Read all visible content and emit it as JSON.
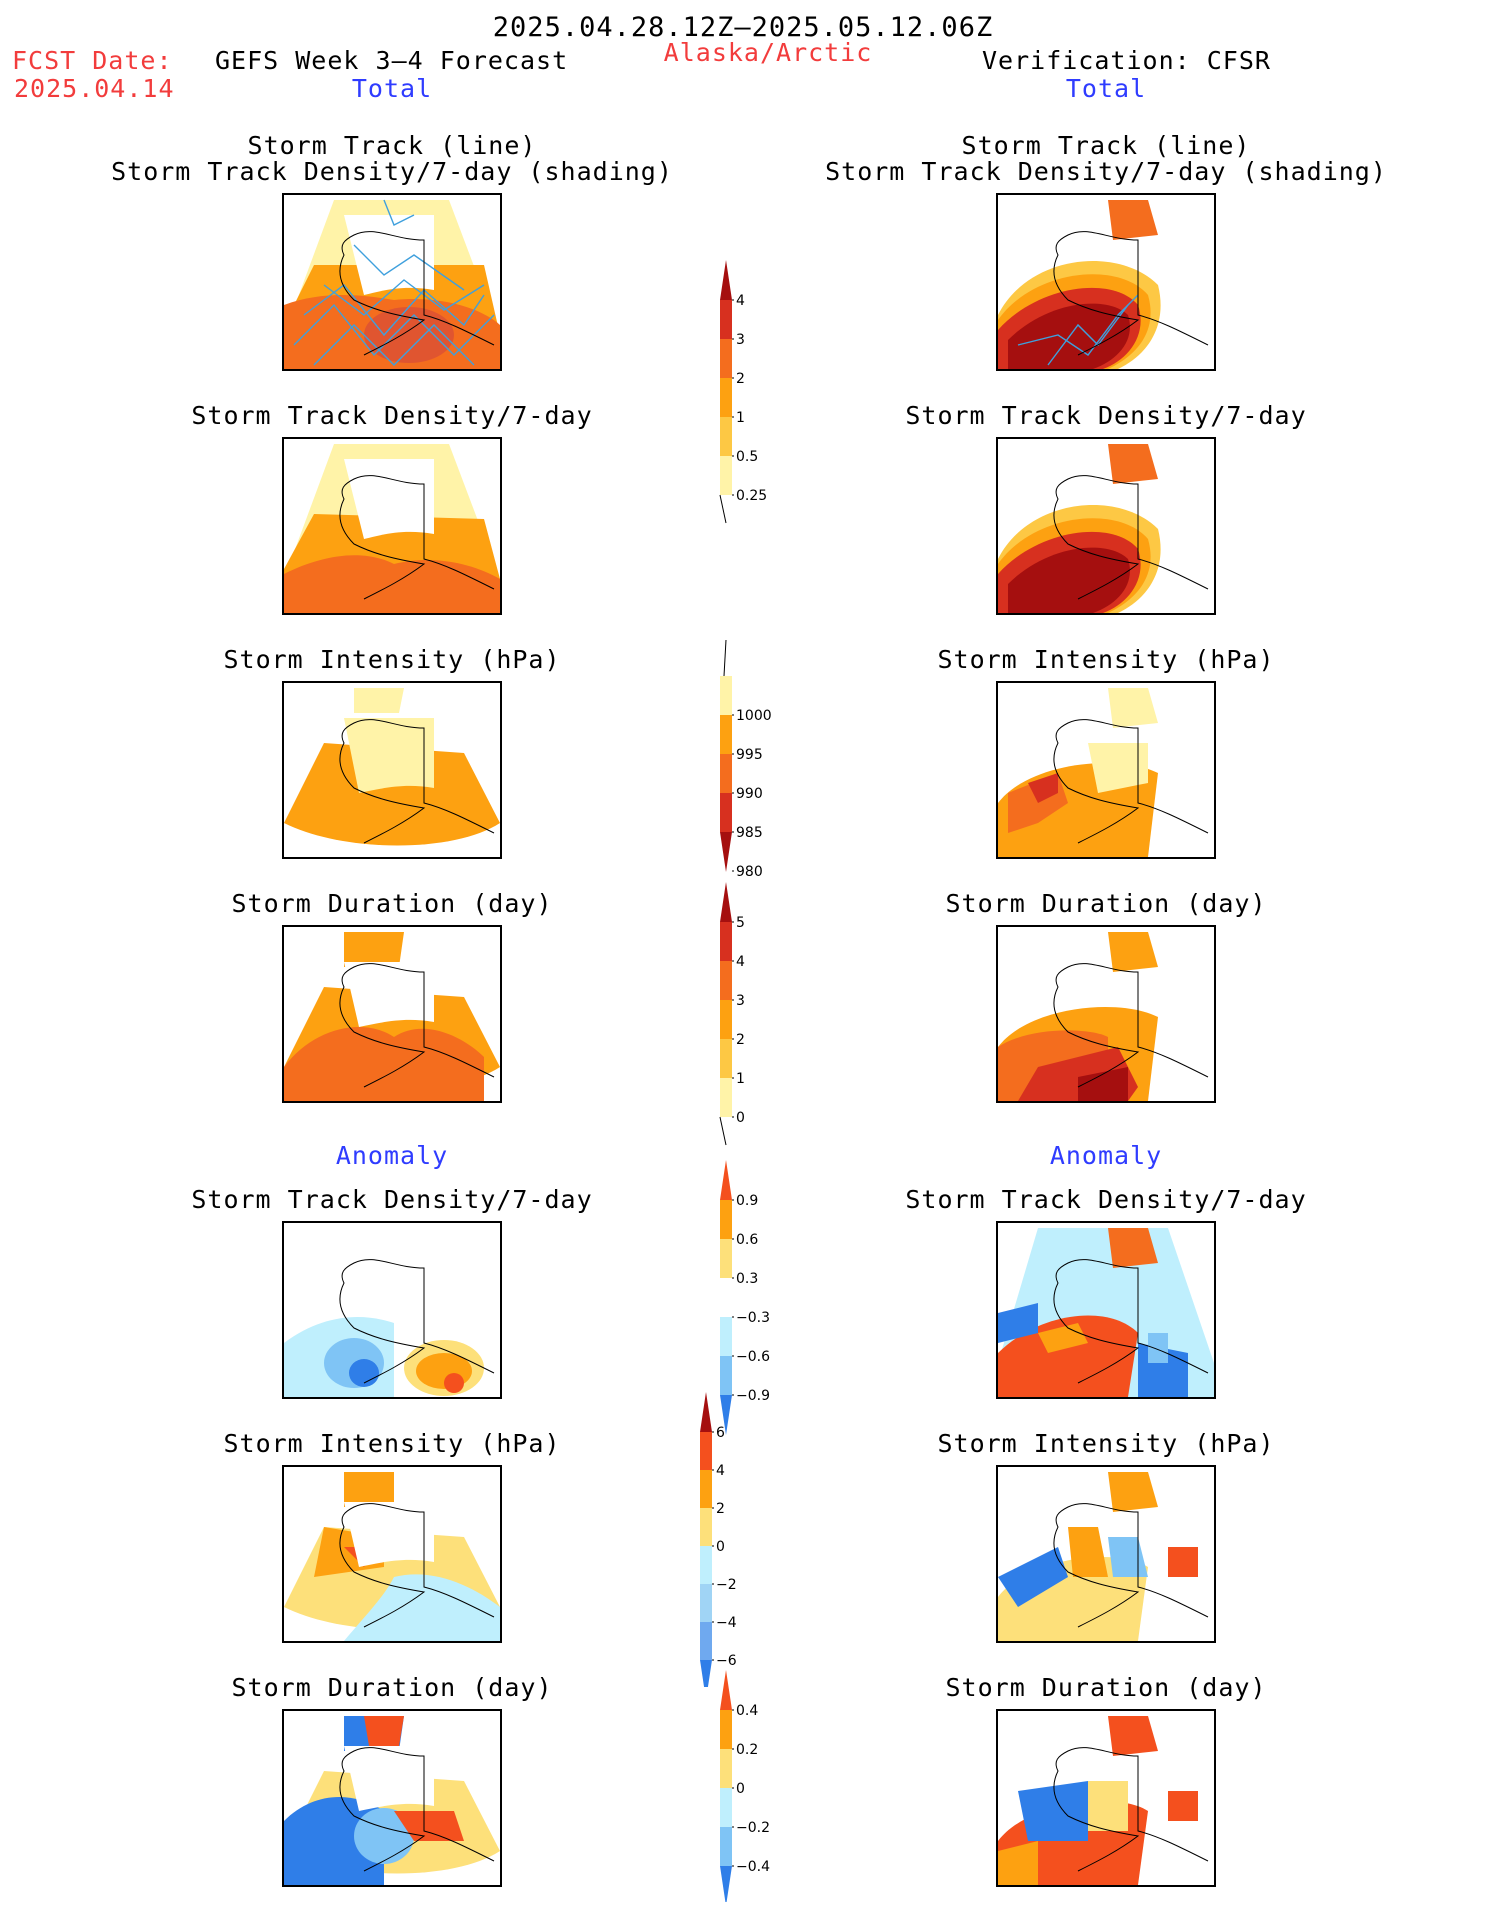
{
  "header": {
    "date_range": "2025.04.28.12Z–2025.05.12.06Z",
    "fcst_label": "FCST Date:",
    "fcst_date": "2025.04.14",
    "forecast_title": "GEFS Week 3–4 Forecast",
    "region": "Alaska/Arctic",
    "verification_title": "Verification: CFSR",
    "left_section": "Total",
    "right_section": "Total"
  },
  "anomaly_header": {
    "left": "Anomaly",
    "right": "Anomaly"
  },
  "panels": [
    {
      "id": "track",
      "left_title_1": "Storm Track (line)",
      "left_title_2": "Storm Track Density/7-day (shading)",
      "right_title_1": "Storm Track (line)",
      "right_title_2": "Storm Track Density/7-day (shading)"
    },
    {
      "id": "density",
      "left_title": "Storm Track Density/7-day",
      "right_title": "Storm Track Density/7-day"
    },
    {
      "id": "intensity",
      "left_title": "Storm Intensity (hPa)",
      "right_title": "Storm Intensity (hPa)"
    },
    {
      "id": "duration",
      "left_title": "Storm Duration (day)",
      "right_title": "Storm Duration (day)"
    },
    {
      "id": "anom_density",
      "left_title": "Storm Track Density/7-day",
      "right_title": "Storm Track Density/7-day"
    },
    {
      "id": "anom_intensity",
      "left_title": "Storm Intensity (hPa)",
      "right_title": "Storm Intensity (hPa)"
    },
    {
      "id": "anom_duration",
      "left_title": "Storm Duration (day)",
      "right_title": "Storm Duration (day)"
    }
  ],
  "colorbars": {
    "density": {
      "labels": [
        "4",
        "3",
        "2",
        "1",
        "0.5",
        "0.25"
      ],
      "colors": [
        "#a50f0f",
        "#d7301f",
        "#f46d1e",
        "#fda111",
        "#fdc844",
        "#fff3a8"
      ]
    },
    "intensity": {
      "labels": [
        "1000",
        "995",
        "990",
        "985",
        "980"
      ],
      "colors": [
        "#fff3a8",
        "#fda111",
        "#f46d1e",
        "#d7301f",
        "#a50f0f"
      ]
    },
    "duration": {
      "labels": [
        "5",
        "4",
        "3",
        "2",
        "1",
        "0"
      ],
      "colors": [
        "#a50f0f",
        "#d7301f",
        "#f46d1e",
        "#fda111",
        "#fdc844",
        "#fff3a8"
      ]
    },
    "anom_density": {
      "labels": [
        "0.9",
        "0.6",
        "0.3",
        "−0.3",
        "−0.6",
        "−0.9"
      ],
      "colors": [
        "#f4501e",
        "#fda111",
        "#fde07a",
        "#ffffff",
        "#bfeffd",
        "#7fc4f5",
        "#2f7ee8"
      ]
    },
    "anom_intensity": {
      "labels": [
        "6",
        "4",
        "2",
        "0",
        "−2",
        "−4",
        "−6"
      ],
      "colors": [
        "#a50f0f",
        "#f4501e",
        "#fda111",
        "#fde07a",
        "#bfeffd",
        "#a0d4f5",
        "#6fa9ef",
        "#2f7ee8"
      ]
    },
    "anom_duration": {
      "labels": [
        "0.4",
        "0.2",
        "0",
        "−0.2",
        "−0.4"
      ],
      "colors": [
        "#f4501e",
        "#fda111",
        "#fde07a",
        "#bfeffd",
        "#7fc4f5",
        "#2f7ee8"
      ]
    }
  }
}
